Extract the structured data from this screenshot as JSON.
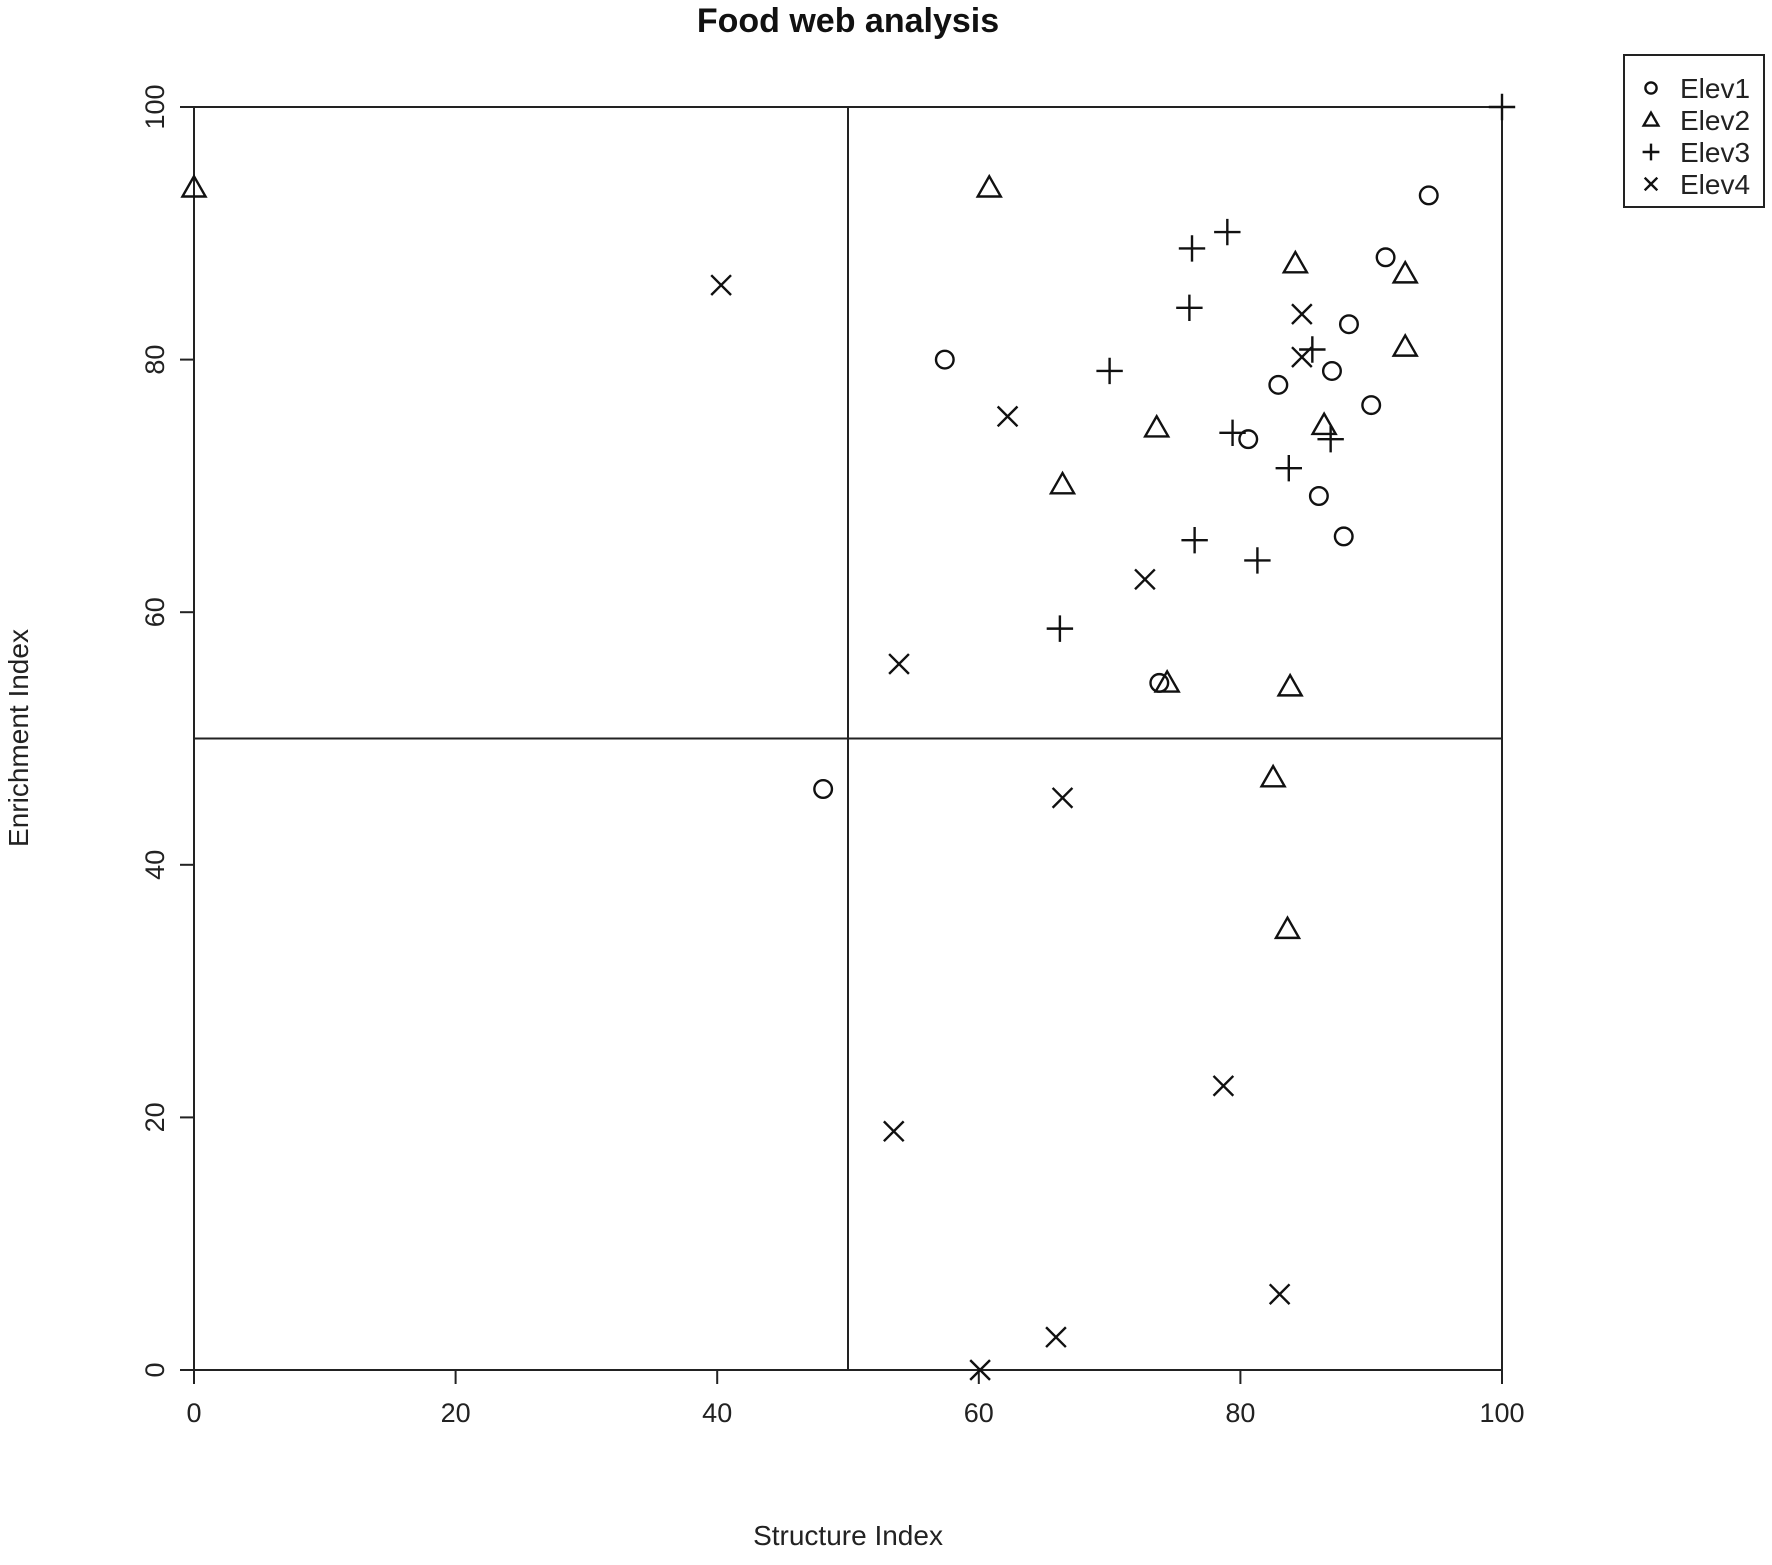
{
  "chart_data": {
    "type": "scatter",
    "title": "Food web analysis",
    "xlabel": "Structure Index",
    "ylabel": "Enrichment Index",
    "xlim": [
      0,
      100
    ],
    "ylim": [
      0,
      100
    ],
    "xticks": [
      0,
      20,
      40,
      60,
      80,
      100
    ],
    "yticks": [
      0,
      20,
      40,
      60,
      80,
      100
    ],
    "grid": false,
    "reference_lines": {
      "x": 50,
      "y": 50
    },
    "legend": {
      "position": "top-right-outside"
    },
    "series": [
      {
        "name": "Elev1",
        "marker": "circle",
        "points": [
          [
            94.4,
            93.0
          ],
          [
            91.1,
            88.1
          ],
          [
            88.3,
            82.8
          ],
          [
            57.4,
            80.0
          ],
          [
            87.0,
            79.1
          ],
          [
            82.9,
            78.0
          ],
          [
            90.0,
            76.4
          ],
          [
            80.6,
            73.7
          ],
          [
            86.0,
            69.2
          ],
          [
            87.9,
            66.0
          ],
          [
            73.8,
            54.4
          ],
          [
            48.1,
            46.0
          ]
        ]
      },
      {
        "name": "Elev2",
        "marker": "triangle",
        "points": [
          [
            0.0,
            93.6
          ],
          [
            60.8,
            93.6
          ],
          [
            84.2,
            87.6
          ],
          [
            92.6,
            86.8
          ],
          [
            92.6,
            81.0
          ],
          [
            73.6,
            74.6
          ],
          [
            86.4,
            74.8
          ],
          [
            66.4,
            70.1
          ],
          [
            74.4,
            54.4
          ],
          [
            83.8,
            54.1
          ],
          [
            82.5,
            46.9
          ],
          [
            83.6,
            34.9
          ]
        ]
      },
      {
        "name": "Elev3",
        "marker": "plus",
        "points": [
          [
            100.0,
            100.0
          ],
          [
            79.0,
            90.1
          ],
          [
            76.3,
            88.8
          ],
          [
            76.1,
            84.1
          ],
          [
            85.5,
            80.8
          ],
          [
            70.0,
            79.1
          ],
          [
            79.4,
            74.2
          ],
          [
            86.9,
            73.7
          ],
          [
            83.7,
            71.4
          ],
          [
            76.5,
            65.7
          ],
          [
            81.3,
            64.1
          ],
          [
            66.2,
            58.7
          ]
        ]
      },
      {
        "name": "Elev4",
        "marker": "cross",
        "points": [
          [
            40.3,
            85.9
          ],
          [
            84.7,
            83.6
          ],
          [
            84.7,
            80.2
          ],
          [
            62.2,
            75.5
          ],
          [
            72.7,
            62.6
          ],
          [
            53.9,
            55.9
          ],
          [
            66.4,
            45.3
          ],
          [
            78.7,
            22.5
          ],
          [
            53.5,
            18.9
          ],
          [
            83.0,
            6.0
          ],
          [
            65.9,
            2.6
          ],
          [
            60.1,
            0.0
          ]
        ]
      }
    ]
  }
}
